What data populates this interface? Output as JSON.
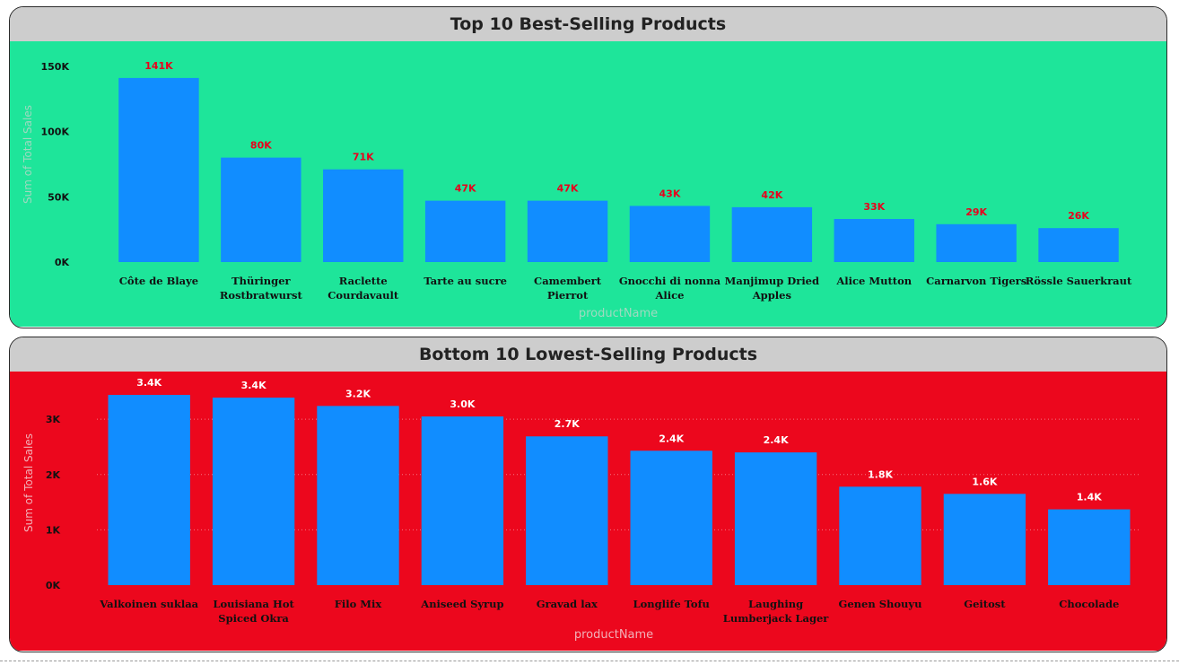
{
  "chart_data": [
    {
      "type": "bar",
      "title": "Top 10 Best-Selling Products",
      "xlabel": "productName",
      "ylabel": "Sum of Total Sales",
      "ylim": [
        0,
        165000
      ],
      "yticks": [
        0,
        50000,
        100000,
        150000
      ],
      "ytick_labels": [
        "0K",
        "50K",
        "100K",
        "150K"
      ],
      "grid": false,
      "background_color": "#1ee59a",
      "bar_color": "#118dff",
      "data_label_color": "#e8001c",
      "categories": [
        "Côte de Blaye",
        "Thüringer Rostbratwurst",
        "Raclette Courdavault",
        "Tarte au sucre",
        "Camembert Pierrot",
        "Gnocchi di nonna Alice",
        "Manjimup Dried Apples",
        "Alice Mutton",
        "Carnarvon Tigers",
        "Rössle Sauerkraut"
      ],
      "category_lines": [
        [
          "Côte de Blaye"
        ],
        [
          "Thüringer",
          "Rostbratwurst"
        ],
        [
          "Raclette",
          "Courdavault"
        ],
        [
          "Tarte au sucre"
        ],
        [
          "Camembert",
          "Pierrot"
        ],
        [
          "Gnocchi di nonna",
          "Alice"
        ],
        [
          "Manjimup Dried",
          "Apples"
        ],
        [
          "Alice Mutton"
        ],
        [
          "Carnarvon Tigers"
        ],
        [
          "Rössle Sauerkraut"
        ]
      ],
      "values": [
        141000,
        80000,
        71000,
        47000,
        47000,
        43000,
        42000,
        33000,
        29000,
        26000
      ],
      "data_labels": [
        "141K",
        "80K",
        "71K",
        "47K",
        "47K",
        "43K",
        "42K",
        "33K",
        "29K",
        "26K"
      ]
    },
    {
      "type": "bar",
      "title": "Bottom 10 Lowest-Selling Products",
      "xlabel": "productName",
      "ylabel": "Sum of Total Sales",
      "ylim": [
        0,
        3700
      ],
      "yticks": [
        0,
        1000,
        2000,
        3000
      ],
      "ytick_labels": [
        "0K",
        "1K",
        "2K",
        "3K"
      ],
      "grid": true,
      "background_color": "#ec071d",
      "bar_color": "#118dff",
      "data_label_color": "#ffffff",
      "categories": [
        "Valkoinen suklaa",
        "Louisiana Hot Spiced Okra",
        "Filo Mix",
        "Aniseed Syrup",
        "Gravad lax",
        "Longlife Tofu",
        "Laughing Lumberjack Lager",
        "Genen Shouyu",
        "Geitost",
        "Chocolade"
      ],
      "category_lines": [
        [
          "Valkoinen suklaa"
        ],
        [
          "Louisiana Hot",
          "Spiced Okra"
        ],
        [
          "Filo Mix"
        ],
        [
          "Aniseed Syrup"
        ],
        [
          "Gravad lax"
        ],
        [
          "Longlife Tofu"
        ],
        [
          "Laughing",
          "Lumberjack Lager"
        ],
        [
          "Genen Shouyu"
        ],
        [
          "Geitost"
        ],
        [
          "Chocolade"
        ]
      ],
      "values": [
        3440,
        3390,
        3240,
        3050,
        2690,
        2430,
        2400,
        1780,
        1650,
        1370
      ],
      "data_labels": [
        "3.4K",
        "3.4K",
        "3.2K",
        "3.0K",
        "2.7K",
        "2.4K",
        "2.4K",
        "1.8K",
        "1.6K",
        "1.4K"
      ]
    }
  ]
}
